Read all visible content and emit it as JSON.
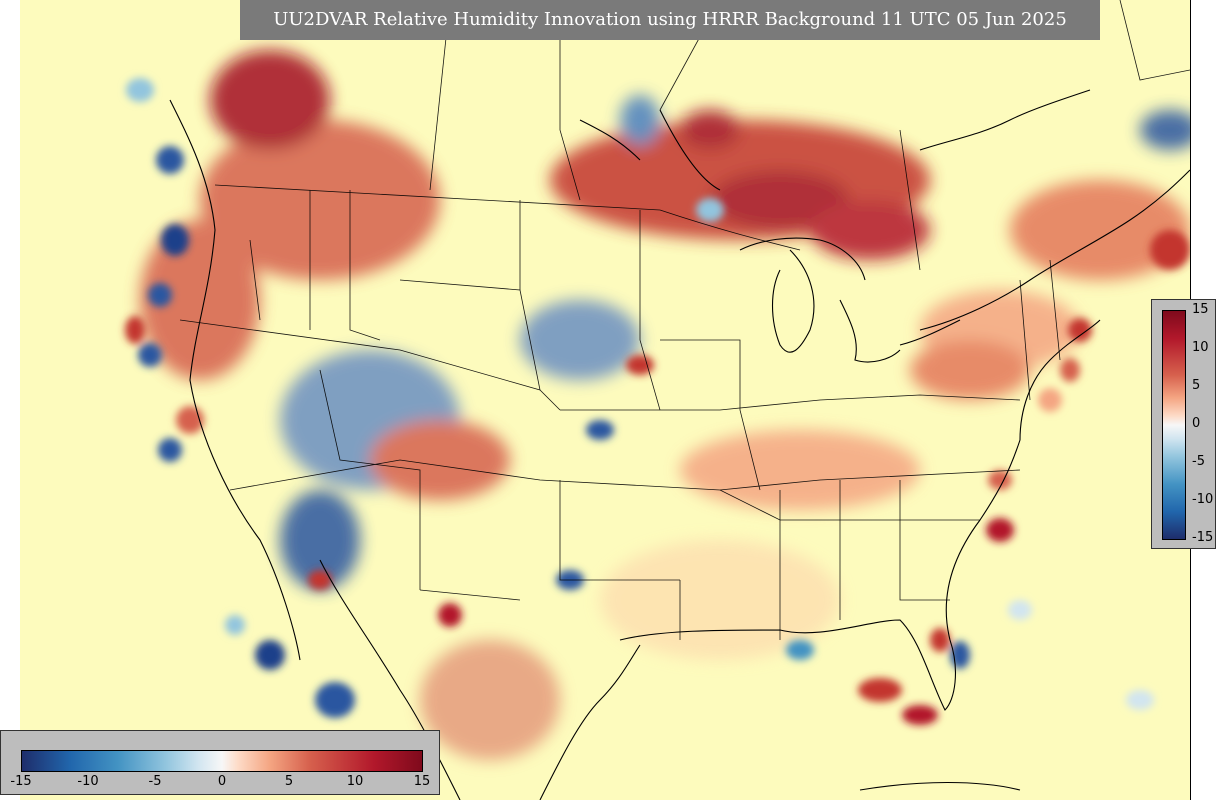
{
  "map": {
    "title": "UU2DVAR Relative Humidity Innovation using HRRR Background 11 UTC 05 Jun 2025"
  },
  "colorbar_vertical": {
    "ticks": [
      "15",
      "10",
      "5",
      "0",
      "-5",
      "-10",
      "-15"
    ]
  },
  "colorbar_horizontal": {
    "ticks": [
      "-15",
      "-10",
      "-5",
      "0",
      "5",
      "10",
      "15"
    ]
  },
  "colors": {
    "background_field": "#fdfbbd",
    "positive_max": "#b2182b",
    "negative_max": "#2166ac",
    "title_bar": "#7a7a7a"
  }
}
